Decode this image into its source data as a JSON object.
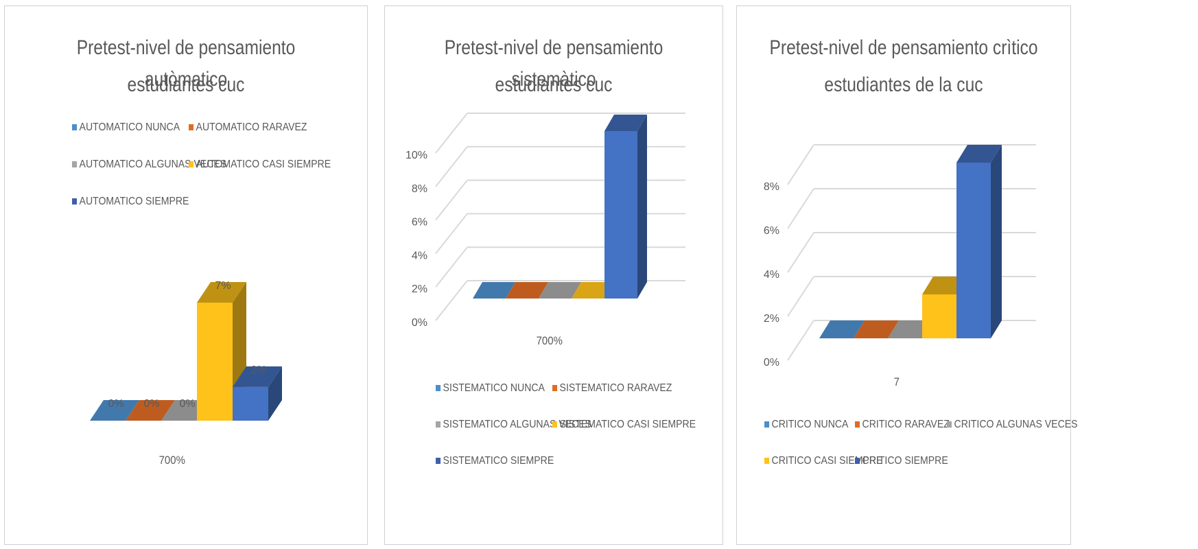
{
  "colors": {
    "nunca": "#4e8ecb",
    "raravez": "#e06c24",
    "algunas": "#a5a5a5",
    "casi": "#ffc21a",
    "siempre": "#4472c4"
  },
  "chart_data": [
    {
      "type": "bar",
      "title_line1": "Pretest-nivel de pensamiento autòmatico",
      "title_line2": "estudiantes cuc",
      "categories": [
        "700%"
      ],
      "series": [
        {
          "name": "AUTOMATICO NUNCA",
          "values": [
            0
          ],
          "label": "0%"
        },
        {
          "name": "AUTOMATICO RARAVEZ",
          "values": [
            0
          ],
          "label": "0%"
        },
        {
          "name": "AUTOMATICO ALGUNAS VECES",
          "values": [
            0
          ],
          "label": "0%"
        },
        {
          "name": "AUTOMATICO CASI SIEMPRE",
          "values": [
            7
          ],
          "label": "7%"
        },
        {
          "name": "AUTOMATICO SIEMPRE",
          "values": [
            2
          ],
          "label": "2%"
        }
      ],
      "ylim": [
        0,
        7
      ],
      "grid": false,
      "legend": "top"
    },
    {
      "type": "bar",
      "title_line1": "Pretest-nivel de pensamiento sistemàtico",
      "title_line2": "estudiantes cuc",
      "categories": [
        "700%"
      ],
      "series": [
        {
          "name": "SISTEMATICO NUNCA",
          "values": [
            0
          ]
        },
        {
          "name": "SISTEMATICO RARAVEZ",
          "values": [
            0
          ]
        },
        {
          "name": "SISTEMATICO ALGUNAS VECES",
          "values": [
            0
          ]
        },
        {
          "name": "SISTEMATICO CASI SIEMPRE",
          "values": [
            0
          ]
        },
        {
          "name": "SISTEMATICO SIEMPRE",
          "values": [
            10
          ]
        }
      ],
      "yticks": [
        "0%",
        "2%",
        "4%",
        "6%",
        "8%",
        "10%"
      ],
      "ylim": [
        0,
        10
      ],
      "grid": true,
      "legend": "bottom"
    },
    {
      "type": "bar",
      "title_line1": "Pretest-nivel de pensamiento crìtico",
      "title_line2": "estudiantes de la cuc",
      "categories": [
        "7"
      ],
      "series": [
        {
          "name": "CRITICO NUNCA",
          "values": [
            0
          ]
        },
        {
          "name": "CRITICO RARAVEZ",
          "values": [
            0
          ]
        },
        {
          "name": "CRITICO ALGUNAS VECES",
          "values": [
            0
          ]
        },
        {
          "name": "CRITICO CASI SIEMPRE",
          "values": [
            2
          ]
        },
        {
          "name": "CRITICO SIEMPRE",
          "values": [
            8
          ]
        }
      ],
      "yticks": [
        "0%",
        "2%",
        "4%",
        "6%",
        "8%"
      ],
      "ylim": [
        0,
        8
      ],
      "grid": true,
      "legend": "bottom"
    }
  ]
}
